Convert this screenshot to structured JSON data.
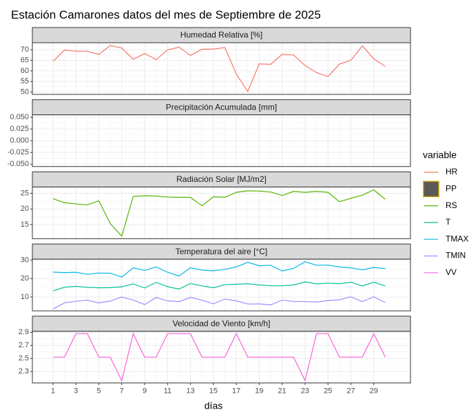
{
  "chart_data": {
    "type": "line",
    "title": "Estación Camarones datos del mes de Septiembre de 2025",
    "x_label": "días",
    "legend_title": "variable",
    "x": [
      1,
      2,
      3,
      4,
      5,
      6,
      7,
      8,
      9,
      10,
      11,
      12,
      13,
      14,
      15,
      16,
      17,
      18,
      19,
      20,
      21,
      22,
      23,
      24,
      25,
      26,
      27,
      28,
      29,
      30
    ],
    "xlim": [
      -0.8,
      32.2
    ],
    "xticks": [
      1,
      3,
      5,
      7,
      9,
      11,
      13,
      15,
      17,
      19,
      21,
      23,
      25,
      27,
      29
    ],
    "grid": true,
    "panels": [
      {
        "title": "Humedad Relativa [%]",
        "ylim": [
          48.9,
          73.3
        ],
        "yticks": [
          50,
          55,
          60,
          65,
          70
        ],
        "series": [
          {
            "name": "HR",
            "color": "#F8766D",
            "values": [
              64.5,
              69.8,
              69.3,
              69.3,
              67.8,
              72,
              70.8,
              65.5,
              68.2,
              65.3,
              69.9,
              71.2,
              67.3,
              70.2,
              70.3,
              71,
              58.5,
              50.3,
              63.3,
              63.1,
              67.8,
              67.5,
              62.5,
              59.2,
              57.3,
              63.2,
              65,
              71.8,
              65.7,
              62.2
            ]
          }
        ]
      },
      {
        "title": "Precipitación Acumulada [mm]",
        "ylim": [
          -0.055,
          0.055
        ],
        "yticks": [
          {
            "value": -0.05,
            "label": "-0.050"
          },
          {
            "value": -0.025,
            "label": "-0.025"
          },
          {
            "value": 0,
            "label": "0.000"
          },
          {
            "value": 0.025,
            "label": "0.025"
          },
          {
            "value": 0.05,
            "label": "0.050"
          }
        ],
        "series": [
          {
            "name": "PP",
            "type": "bar",
            "color": "#C49A00",
            "fill": "#595959",
            "values": [
              0,
              0,
              0,
              0,
              0,
              0,
              0,
              0,
              0,
              0,
              0,
              0,
              0,
              0,
              0,
              0,
              0,
              0,
              0,
              0,
              0,
              0,
              0,
              0,
              0,
              0,
              0,
              0,
              0,
              0
            ]
          }
        ]
      },
      {
        "title": "Radiación Solar [MJ/m2]",
        "ylim": [
          10.5,
          27
        ],
        "yticks": [
          15,
          20,
          25
        ],
        "series": [
          {
            "name": "RS",
            "color": "#53B400",
            "values": [
              23.3,
              22,
              21.6,
              21.3,
              22.6,
              15.3,
              11.3,
              24,
              24.2,
              24.1,
              23.8,
              23.7,
              23.7,
              21,
              23.9,
              23.7,
              25.3,
              25.8,
              25.7,
              25.4,
              24.3,
              25.6,
              25.3,
              25.6,
              25.3,
              22.3,
              23.4,
              24.4,
              26.1,
              23.1
            ]
          }
        ]
      },
      {
        "title": "Temperatura del aire [°C]",
        "ylim": [
          2.5,
          30.5
        ],
        "yticks": [
          10,
          20,
          30
        ],
        "series": [
          {
            "name": "T",
            "color": "#00C094",
            "values": [
              13.3,
              15.3,
              15.8,
              15.2,
              15,
              15.1,
              15.5,
              17.1,
              14.9,
              17.9,
              15.6,
              14.3,
              17.3,
              16,
              15,
              16.7,
              16.9,
              17.2,
              16.5,
              16.1,
              16.1,
              16.5,
              18.2,
              17.1,
              17.5,
              17.2,
              18,
              16,
              18,
              16
            ]
          },
          {
            "name": "TMAX",
            "color": "#00B6EB",
            "values": [
              23.5,
              23.2,
              23.4,
              22.3,
              23,
              22.9,
              20.8,
              25.8,
              24.4,
              26.3,
              23.4,
              21.4,
              25.8,
              24.6,
              24.2,
              25,
              26.3,
              28.8,
              26.9,
              27.2,
              24.1,
              25.5,
              29.1,
              27.2,
              27.3,
              26.3,
              25.8,
              24.7,
              26,
              25.4
            ]
          },
          {
            "name": "TMIN",
            "color": "#A58AFF",
            "values": [
              3.5,
              6.8,
              7.7,
              8.3,
              6.8,
              7.8,
              10,
              8.4,
              5.9,
              9.7,
              7.9,
              7.5,
              9.8,
              8.3,
              6.3,
              8.9,
              7.9,
              6.2,
              6.3,
              5.7,
              8.3,
              7.6,
              7.5,
              7.3,
              8.1,
              8.5,
              10.1,
              7.5,
              10.1,
              7
            ]
          }
        ]
      },
      {
        "title": "Velocidad de Viento [km/h]",
        "ylim": [
          2.124,
          2.916
        ],
        "yticks": [
          2.3,
          2.5,
          2.7,
          2.9
        ],
        "series": [
          {
            "name": "VV",
            "color": "#FB61D7",
            "values": [
              2.52,
              2.52,
              2.88,
              2.88,
              2.52,
              2.52,
              2.16,
              2.88,
              2.52,
              2.52,
              2.88,
              2.88,
              2.88,
              2.52,
              2.52,
              2.52,
              2.88,
              2.52,
              2.52,
              2.52,
              2.52,
              2.52,
              2.16,
              2.88,
              2.88,
              2.52,
              2.52,
              2.52,
              2.88,
              2.52
            ]
          }
        ]
      }
    ]
  }
}
